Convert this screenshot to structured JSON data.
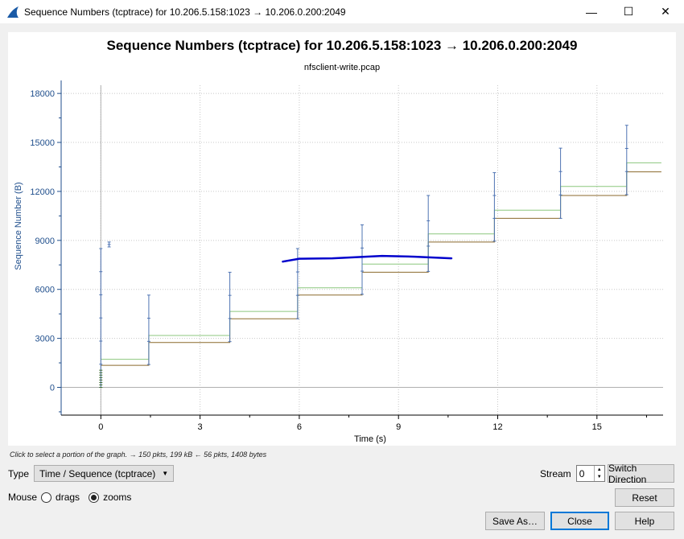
{
  "window": {
    "title": "Sequence Numbers (tcptrace) for 10.206.5.158:1023 → 10.206.0.200:2049",
    "minimize_icon": "minimize-icon",
    "maximize_icon": "maximize-icon",
    "close_icon": "close-icon",
    "minimize_glyph": "—",
    "maximize_glyph": "☐",
    "close_glyph": "✕"
  },
  "chart_data": {
    "type": "line",
    "title": "Sequence Numbers (tcptrace) for 10.206.5.158:1023 → 10.206.0.200:2049",
    "subtitle": "nfsclient-write.pcap",
    "xlabel": "Time (s)",
    "ylabel": "Sequence Number (B)",
    "xlim": [
      -1.2,
      17.0
    ],
    "ylim": [
      -1700,
      18500
    ],
    "xticks": [
      0,
      3,
      6,
      9,
      12,
      15
    ],
    "yticks": [
      0,
      3000,
      6000,
      9000,
      12000,
      15000,
      18000
    ],
    "grid": true,
    "colors": {
      "axis": "#1f4e8c",
      "segments": "#4f74b3",
      "ack": "#8b6a2c",
      "window": "#8cc77f",
      "selection": "#0000cc"
    },
    "series": [
      {
        "role": "ack-line",
        "x": [
          0.0,
          1.45,
          1.45,
          3.9,
          3.9,
          5.95,
          5.95,
          7.9,
          7.9,
          9.9,
          9.9,
          11.9,
          11.9,
          13.9,
          13.9,
          15.9,
          15.9,
          16.95
        ],
        "y": [
          1350,
          1350,
          2750,
          2750,
          4200,
          4200,
          5650,
          5650,
          7050,
          7050,
          8900,
          8900,
          10350,
          10350,
          11750,
          11750,
          13200,
          13200
        ]
      },
      {
        "role": "receive-window",
        "x": [
          0.0,
          1.45,
          1.45,
          3.9,
          3.9,
          5.95,
          5.95,
          7.9,
          7.9,
          9.9,
          9.9,
          11.9,
          11.9,
          13.9,
          13.9,
          15.9,
          15.9,
          16.95
        ],
        "y": [
          1720,
          1720,
          3180,
          3180,
          4650,
          4650,
          6100,
          6100,
          7550,
          7550,
          9400,
          9400,
          10850,
          10850,
          12300,
          12300,
          13750,
          13750
        ]
      },
      {
        "role": "segments",
        "bursts": [
          {
            "x": 0.0,
            "y_low": 0,
            "y_high": 8500
          },
          {
            "x": 0.25,
            "y_low": 8600,
            "y_high": 8900
          },
          {
            "x": 1.45,
            "y_low": 1400,
            "y_high": 5650
          },
          {
            "x": 3.9,
            "y_low": 2800,
            "y_high": 7050
          },
          {
            "x": 5.95,
            "y_low": 4200,
            "y_high": 8500
          },
          {
            "x": 7.9,
            "y_low": 5700,
            "y_high": 9950
          },
          {
            "x": 9.9,
            "y_low": 7100,
            "y_high": 11750
          },
          {
            "x": 11.9,
            "y_low": 8950,
            "y_high": 13150
          },
          {
            "x": 13.9,
            "y_low": 10350,
            "y_high": 14650
          },
          {
            "x": 15.9,
            "y_low": 11800,
            "y_high": 16050
          }
        ]
      },
      {
        "role": "selection-stroke",
        "x": [
          5.5,
          6.0,
          7.0,
          8.5,
          9.5,
          10.6
        ],
        "y": [
          7700,
          7880,
          7900,
          8050,
          8000,
          7900
        ]
      }
    ]
  },
  "info_line": "Click to select a portion of the graph. → 150 pkts, 199 kB ← 56 pkts, 1408 bytes",
  "controls": {
    "type_label": "Type",
    "type_value": "Time / Sequence (tcptrace)",
    "stream_label": "Stream",
    "stream_value": "0",
    "switch_direction": "Switch Direction",
    "mouse_label": "Mouse",
    "drags_label": "drags",
    "zooms_label": "zooms",
    "reset": "Reset",
    "save_as": "Save As…",
    "close": "Close",
    "help": "Help"
  }
}
